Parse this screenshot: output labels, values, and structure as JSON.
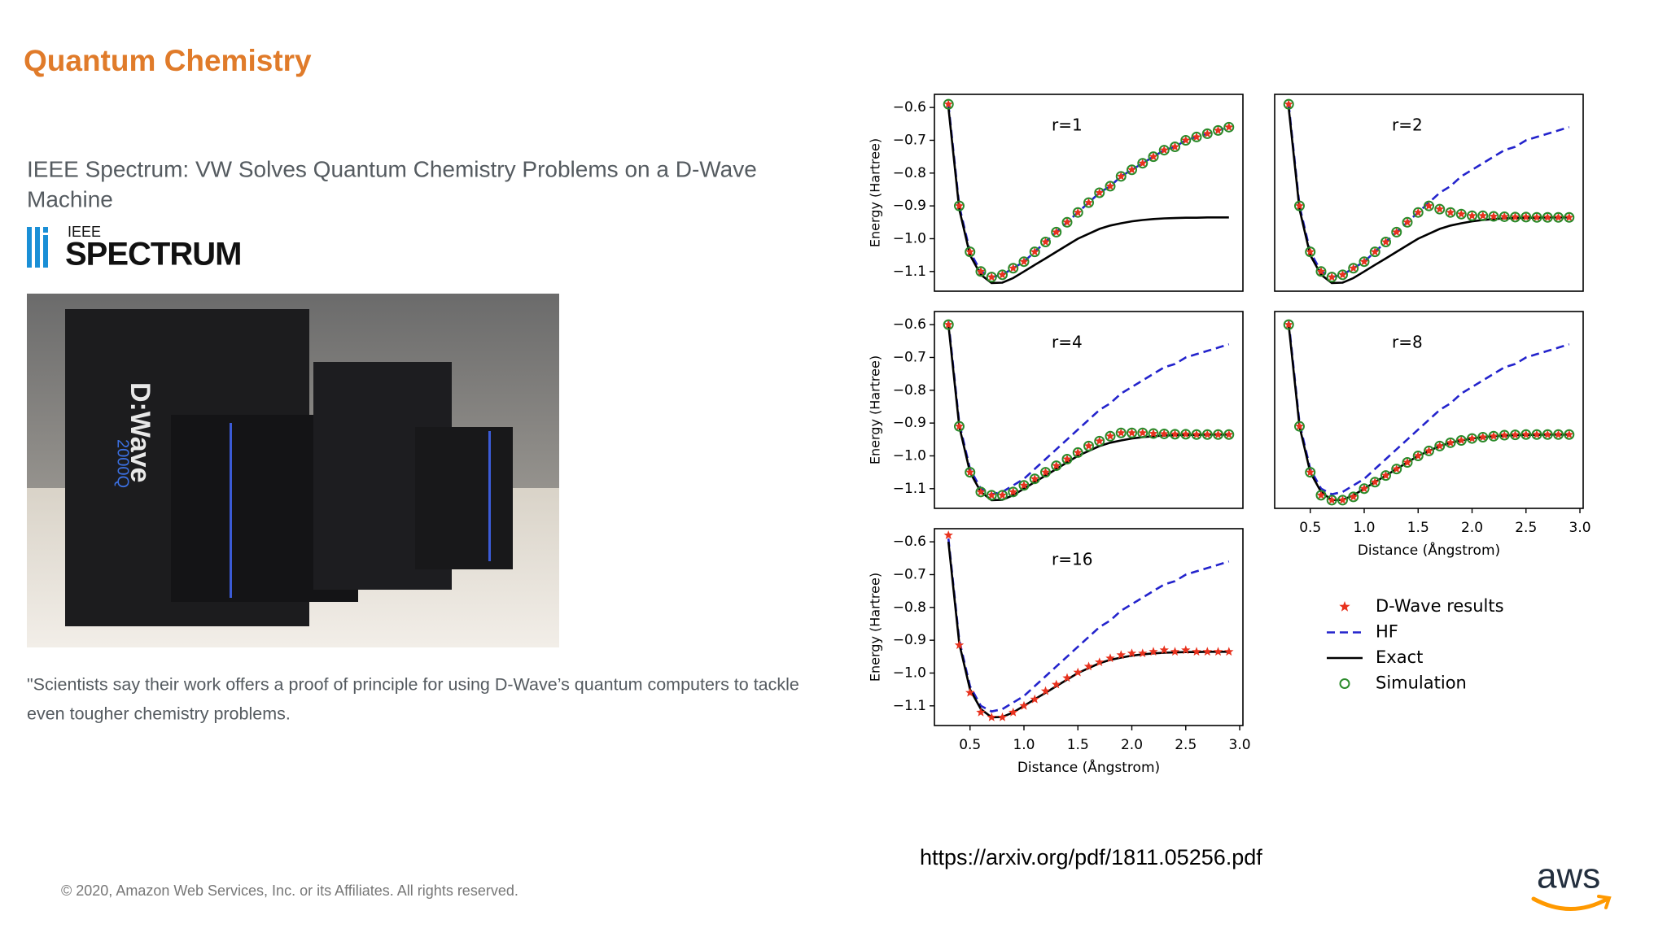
{
  "header": {
    "title": "Quantum Chemistry"
  },
  "article": {
    "headline": [
      "IEEE Spectrum: VW Solves Quantum Chemistry Problems on a D-Wave",
      "Machine"
    ],
    "logo_top": "IEEE",
    "logo_bottom": "SPECTRUM",
    "photo_labels": [
      "D:Wave",
      "2000Q"
    ],
    "quote": [
      "\"Scientists say their work offers a proof of principle for using D-Wave’s quantum computers to tackle",
      "even tougher chemistry problems."
    ]
  },
  "url": "https://arxiv.org/pdf/1811.05256.pdf",
  "footer": "© 2020, Amazon Web Services, Inc. or its Affiliates. All rights reserved.",
  "brand": "aws",
  "chart_data": [
    {
      "type": "line",
      "title": "r=1",
      "ylabel": "Energy (Hartree)",
      "x": [
        0.3,
        0.4,
        0.5,
        0.6,
        0.7,
        0.8,
        0.9,
        1.0,
        1.1,
        1.2,
        1.3,
        1.4,
        1.5,
        1.6,
        1.7,
        1.8,
        1.9,
        2.0,
        2.1,
        2.2,
        2.3,
        2.4,
        2.5,
        2.6,
        2.7,
        2.8,
        2.9
      ],
      "xlim": [
        0.17,
        3.03
      ],
      "ylim": [
        -1.16,
        -0.56
      ],
      "yticks": [
        {
          "value": -0.6,
          "label": "−0.6"
        },
        {
          "value": -0.7,
          "label": "−0.7"
        },
        {
          "value": -0.8,
          "label": "−0.8"
        },
        {
          "value": -0.9,
          "label": "−0.9"
        },
        {
          "value": -1.0,
          "label": "−1.0"
        },
        {
          "value": -1.1,
          "label": "−1.1"
        }
      ],
      "series": [
        {
          "name": "HF",
          "color": "#2323cc",
          "linestyle": "dashed",
          "values": [
            -0.59,
            -0.9,
            -1.04,
            -1.1,
            -1.117,
            -1.11,
            -1.09,
            -1.07,
            -1.04,
            -1.01,
            -0.98,
            -0.95,
            -0.92,
            -0.89,
            -0.86,
            -0.84,
            -0.81,
            -0.79,
            -0.77,
            -0.75,
            -0.73,
            -0.72,
            -0.7,
            -0.69,
            -0.68,
            -0.67,
            -0.66
          ]
        },
        {
          "name": "Exact",
          "color": "#000000",
          "linestyle": "solid",
          "values": [
            -0.6,
            -0.91,
            -1.05,
            -1.11,
            -1.135,
            -1.134,
            -1.12,
            -1.1,
            -1.08,
            -1.06,
            -1.04,
            -1.02,
            -1.0,
            -0.985,
            -0.97,
            -0.96,
            -0.953,
            -0.947,
            -0.943,
            -0.94,
            -0.938,
            -0.937,
            -0.936,
            -0.936,
            -0.935,
            -0.935,
            -0.935
          ]
        },
        {
          "name": "D-Wave results",
          "color": "#e8321e",
          "marker": "star",
          "values": [
            -0.59,
            -0.9,
            -1.04,
            -1.1,
            -1.117,
            -1.11,
            -1.09,
            -1.07,
            -1.04,
            -1.01,
            -0.98,
            -0.95,
            -0.92,
            -0.89,
            -0.86,
            -0.84,
            -0.81,
            -0.79,
            -0.77,
            -0.75,
            -0.73,
            -0.72,
            -0.7,
            -0.69,
            -0.68,
            -0.67,
            -0.66
          ]
        },
        {
          "name": "Simulation",
          "color": "#2a8a2a",
          "marker": "circle",
          "values": [
            -0.59,
            -0.9,
            -1.04,
            -1.1,
            -1.117,
            -1.11,
            -1.09,
            -1.07,
            -1.04,
            -1.01,
            -0.98,
            -0.95,
            -0.92,
            -0.89,
            -0.86,
            -0.84,
            -0.81,
            -0.79,
            -0.77,
            -0.75,
            -0.73,
            -0.72,
            -0.7,
            -0.69,
            -0.68,
            -0.67,
            -0.66
          ]
        }
      ]
    },
    {
      "type": "line",
      "title": "r=2",
      "x": [
        0.3,
        0.4,
        0.5,
        0.6,
        0.7,
        0.8,
        0.9,
        1.0,
        1.1,
        1.2,
        1.3,
        1.4,
        1.5,
        1.6,
        1.7,
        1.8,
        1.9,
        2.0,
        2.1,
        2.2,
        2.3,
        2.4,
        2.5,
        2.6,
        2.7,
        2.8,
        2.9
      ],
      "xlim": [
        0.17,
        3.03
      ],
      "ylim": [
        -1.16,
        -0.56
      ],
      "series": [
        {
          "name": "HF",
          "color": "#2323cc",
          "linestyle": "dashed",
          "values": [
            -0.59,
            -0.9,
            -1.04,
            -1.1,
            -1.117,
            -1.11,
            -1.09,
            -1.07,
            -1.04,
            -1.01,
            -0.98,
            -0.95,
            -0.92,
            -0.89,
            -0.86,
            -0.84,
            -0.81,
            -0.79,
            -0.77,
            -0.75,
            -0.73,
            -0.72,
            -0.7,
            -0.69,
            -0.68,
            -0.67,
            -0.66
          ]
        },
        {
          "name": "Exact",
          "color": "#000000",
          "linestyle": "solid",
          "values": [
            -0.6,
            -0.91,
            -1.05,
            -1.11,
            -1.135,
            -1.134,
            -1.12,
            -1.1,
            -1.08,
            -1.06,
            -1.04,
            -1.02,
            -1.0,
            -0.985,
            -0.97,
            -0.96,
            -0.953,
            -0.947,
            -0.943,
            -0.94,
            -0.938,
            -0.937,
            -0.936,
            -0.936,
            -0.935,
            -0.935,
            -0.935
          ]
        },
        {
          "name": "D-Wave results",
          "color": "#e8321e",
          "marker": "star",
          "values": [
            -0.59,
            -0.9,
            -1.04,
            -1.1,
            -1.117,
            -1.11,
            -1.09,
            -1.07,
            -1.04,
            -1.01,
            -0.98,
            -0.95,
            -0.92,
            -0.9,
            -0.91,
            -0.92,
            -0.925,
            -0.93,
            -0.93,
            -0.932,
            -0.933,
            -0.934,
            -0.934,
            -0.935,
            -0.935,
            -0.935,
            -0.935
          ]
        },
        {
          "name": "Simulation",
          "color": "#2a8a2a",
          "marker": "circle",
          "values": [
            -0.59,
            -0.9,
            -1.04,
            -1.1,
            -1.117,
            -1.11,
            -1.09,
            -1.07,
            -1.04,
            -1.01,
            -0.98,
            -0.95,
            -0.92,
            -0.9,
            -0.91,
            -0.92,
            -0.925,
            -0.93,
            -0.93,
            -0.932,
            -0.933,
            -0.934,
            -0.934,
            -0.935,
            -0.935,
            -0.935,
            -0.935
          ]
        }
      ]
    },
    {
      "type": "line",
      "title": "r=4",
      "ylabel": "Energy (Hartree)",
      "x": [
        0.3,
        0.4,
        0.5,
        0.6,
        0.7,
        0.8,
        0.9,
        1.0,
        1.1,
        1.2,
        1.3,
        1.4,
        1.5,
        1.6,
        1.7,
        1.8,
        1.9,
        2.0,
        2.1,
        2.2,
        2.3,
        2.4,
        2.5,
        2.6,
        2.7,
        2.8,
        2.9
      ],
      "xlim": [
        0.17,
        3.03
      ],
      "ylim": [
        -1.16,
        -0.56
      ],
      "yticks": [
        {
          "value": -0.6,
          "label": "−0.6"
        },
        {
          "value": -0.7,
          "label": "−0.7"
        },
        {
          "value": -0.8,
          "label": "−0.8"
        },
        {
          "value": -0.9,
          "label": "−0.9"
        },
        {
          "value": -1.0,
          "label": "−1.0"
        },
        {
          "value": -1.1,
          "label": "−1.1"
        }
      ],
      "series": [
        {
          "name": "HF",
          "color": "#2323cc",
          "linestyle": "dashed",
          "values": [
            -0.59,
            -0.9,
            -1.04,
            -1.1,
            -1.117,
            -1.11,
            -1.09,
            -1.07,
            -1.04,
            -1.01,
            -0.98,
            -0.95,
            -0.92,
            -0.89,
            -0.86,
            -0.84,
            -0.81,
            -0.79,
            -0.77,
            -0.75,
            -0.73,
            -0.72,
            -0.7,
            -0.69,
            -0.68,
            -0.67,
            -0.66
          ]
        },
        {
          "name": "Exact",
          "color": "#000000",
          "linestyle": "solid",
          "values": [
            -0.6,
            -0.91,
            -1.05,
            -1.11,
            -1.135,
            -1.134,
            -1.12,
            -1.1,
            -1.08,
            -1.06,
            -1.04,
            -1.02,
            -1.0,
            -0.985,
            -0.97,
            -0.96,
            -0.953,
            -0.947,
            -0.943,
            -0.94,
            -0.938,
            -0.937,
            -0.936,
            -0.936,
            -0.935,
            -0.935,
            -0.935
          ]
        },
        {
          "name": "D-Wave results",
          "color": "#e8321e",
          "marker": "star",
          "values": [
            -0.6,
            -0.91,
            -1.05,
            -1.11,
            -1.12,
            -1.12,
            -1.11,
            -1.09,
            -1.07,
            -1.05,
            -1.03,
            -1.01,
            -0.99,
            -0.97,
            -0.955,
            -0.94,
            -0.93,
            -0.93,
            -0.93,
            -0.932,
            -0.933,
            -0.934,
            -0.934,
            -0.935,
            -0.935,
            -0.935,
            -0.935
          ]
        },
        {
          "name": "Simulation",
          "color": "#2a8a2a",
          "marker": "circle",
          "values": [
            -0.6,
            -0.91,
            -1.05,
            -1.11,
            -1.12,
            -1.12,
            -1.11,
            -1.09,
            -1.07,
            -1.05,
            -1.03,
            -1.01,
            -0.99,
            -0.97,
            -0.955,
            -0.94,
            -0.93,
            -0.93,
            -0.93,
            -0.932,
            -0.933,
            -0.934,
            -0.934,
            -0.935,
            -0.935,
            -0.935,
            -0.935
          ]
        }
      ]
    },
    {
      "type": "line",
      "title": "r=8",
      "xlabel": "Distance (Ångstrom)",
      "x": [
        0.3,
        0.4,
        0.5,
        0.6,
        0.7,
        0.8,
        0.9,
        1.0,
        1.1,
        1.2,
        1.3,
        1.4,
        1.5,
        1.6,
        1.7,
        1.8,
        1.9,
        2.0,
        2.1,
        2.2,
        2.3,
        2.4,
        2.5,
        2.6,
        2.7,
        2.8,
        2.9
      ],
      "xlim": [
        0.17,
        3.03
      ],
      "ylim": [
        -1.16,
        -0.56
      ],
      "xticks": [
        0.5,
        {
          "value": 1.0,
          "label": "1.0"
        },
        1.5,
        {
          "value": 2.0,
          "label": "2.0"
        },
        2.5,
        {
          "value": 3.0,
          "label": "3.0"
        }
      ],
      "series": [
        {
          "name": "HF",
          "color": "#2323cc",
          "linestyle": "dashed",
          "values": [
            -0.59,
            -0.9,
            -1.04,
            -1.1,
            -1.117,
            -1.11,
            -1.09,
            -1.07,
            -1.04,
            -1.01,
            -0.98,
            -0.95,
            -0.92,
            -0.89,
            -0.86,
            -0.84,
            -0.81,
            -0.79,
            -0.77,
            -0.75,
            -0.73,
            -0.72,
            -0.7,
            -0.69,
            -0.68,
            -0.67,
            -0.66
          ]
        },
        {
          "name": "Exact",
          "color": "#000000",
          "linestyle": "solid",
          "values": [
            -0.6,
            -0.91,
            -1.05,
            -1.11,
            -1.135,
            -1.134,
            -1.12,
            -1.1,
            -1.08,
            -1.06,
            -1.04,
            -1.02,
            -1.0,
            -0.985,
            -0.97,
            -0.96,
            -0.953,
            -0.947,
            -0.943,
            -0.94,
            -0.938,
            -0.937,
            -0.936,
            -0.936,
            -0.935,
            -0.935,
            -0.935
          ]
        },
        {
          "name": "D-Wave results",
          "color": "#e8321e",
          "marker": "star",
          "values": [
            -0.6,
            -0.91,
            -1.05,
            -1.12,
            -1.135,
            -1.135,
            -1.125,
            -1.1,
            -1.08,
            -1.06,
            -1.04,
            -1.02,
            -1.0,
            -0.985,
            -0.97,
            -0.96,
            -0.953,
            -0.947,
            -0.943,
            -0.94,
            -0.937,
            -0.936,
            -0.935,
            -0.935,
            -0.935,
            -0.935,
            -0.935
          ]
        },
        {
          "name": "Simulation",
          "color": "#2a8a2a",
          "marker": "circle",
          "values": [
            -0.6,
            -0.91,
            -1.05,
            -1.12,
            -1.135,
            -1.135,
            -1.125,
            -1.1,
            -1.08,
            -1.06,
            -1.04,
            -1.02,
            -1.0,
            -0.985,
            -0.97,
            -0.96,
            -0.953,
            -0.947,
            -0.943,
            -0.94,
            -0.937,
            -0.936,
            -0.935,
            -0.935,
            -0.935,
            -0.935,
            -0.935
          ]
        }
      ]
    },
    {
      "type": "line",
      "title": "r=16",
      "ylabel": "Energy (Hartree)",
      "xlabel": "Distance (Ångstrom)",
      "x": [
        0.3,
        0.4,
        0.5,
        0.6,
        0.7,
        0.8,
        0.9,
        1.0,
        1.1,
        1.2,
        1.3,
        1.4,
        1.5,
        1.6,
        1.7,
        1.8,
        1.9,
        2.0,
        2.1,
        2.2,
        2.3,
        2.4,
        2.5,
        2.6,
        2.7,
        2.8,
        2.9
      ],
      "xlim": [
        0.17,
        3.03
      ],
      "ylim": [
        -1.16,
        -0.56
      ],
      "xticks": [
        0.5,
        {
          "value": 1.0,
          "label": "1.0"
        },
        1.5,
        {
          "value": 2.0,
          "label": "2.0"
        },
        2.5,
        {
          "value": 3.0,
          "label": "3.0"
        }
      ],
      "yticks": [
        {
          "value": -0.6,
          "label": "−0.6"
        },
        {
          "value": -0.7,
          "label": "−0.7"
        },
        {
          "value": -0.8,
          "label": "−0.8"
        },
        {
          "value": -0.9,
          "label": "−0.9"
        },
        {
          "value": -1.0,
          "label": "−1.0"
        },
        {
          "value": -1.1,
          "label": "−1.1"
        }
      ],
      "series": [
        {
          "name": "HF",
          "color": "#2323cc",
          "linestyle": "dashed",
          "values": [
            -0.59,
            -0.9,
            -1.04,
            -1.1,
            -1.117,
            -1.11,
            -1.09,
            -1.07,
            -1.04,
            -1.01,
            -0.98,
            -0.95,
            -0.92,
            -0.89,
            -0.86,
            -0.84,
            -0.81,
            -0.79,
            -0.77,
            -0.75,
            -0.73,
            -0.72,
            -0.7,
            -0.69,
            -0.68,
            -0.67,
            -0.66
          ]
        },
        {
          "name": "Exact",
          "color": "#000000",
          "linestyle": "solid",
          "values": [
            -0.6,
            -0.91,
            -1.05,
            -1.11,
            -1.135,
            -1.134,
            -1.12,
            -1.1,
            -1.08,
            -1.06,
            -1.04,
            -1.02,
            -1.0,
            -0.985,
            -0.97,
            -0.96,
            -0.953,
            -0.947,
            -0.943,
            -0.94,
            -0.938,
            -0.937,
            -0.936,
            -0.936,
            -0.935,
            -0.935,
            -0.935
          ]
        },
        {
          "name": "D-Wave results",
          "color": "#e8321e",
          "marker": "star",
          "values": [
            -0.58,
            -0.915,
            -1.06,
            -1.12,
            -1.135,
            -1.135,
            -1.12,
            -1.1,
            -1.08,
            -1.055,
            -1.035,
            -1.015,
            -0.998,
            -0.98,
            -0.967,
            -0.955,
            -0.945,
            -0.94,
            -0.94,
            -0.935,
            -0.93,
            -0.935,
            -0.93,
            -0.935,
            -0.935,
            -0.935,
            -0.935
          ]
        }
      ]
    }
  ]
}
